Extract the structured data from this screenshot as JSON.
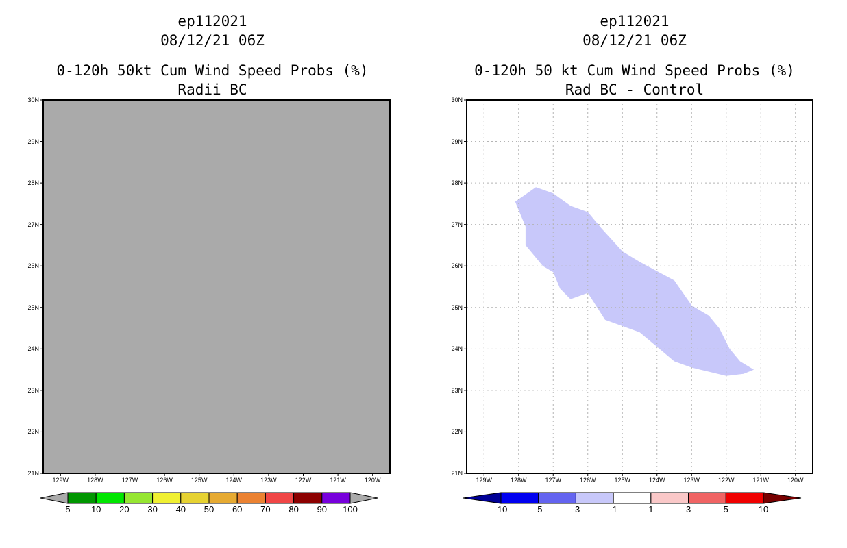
{
  "left": {
    "storm_id": "ep112021",
    "datetime": "08/12/21 06Z",
    "title_line1": "0-120h 50kt Cum Wind Speed Probs (%)",
    "title_line2": "Radii BC",
    "fill_color": "#aaaaaa",
    "colorbar": {
      "colors": [
        "#009600",
        "#00e600",
        "#96e632",
        "#f0f032",
        "#e6d232",
        "#e6aa32",
        "#eb8232",
        "#f04646",
        "#8c0000",
        "#7800dc"
      ],
      "end_color": "#aaaaaa",
      "labels": [
        "5",
        "10",
        "20",
        "30",
        "40",
        "50",
        "60",
        "70",
        "80",
        "90",
        "100"
      ]
    }
  },
  "right": {
    "storm_id": "ep112021",
    "datetime": "08/12/21 06Z",
    "title_line1": "0-120h 50 kt Cum Wind Speed Probs (%)",
    "title_line2": "Rad BC - Control",
    "shade_color": "#c8c8fa",
    "colorbar": {
      "colors": [
        "#0000f0",
        "#6464f0",
        "#c8c8fa",
        "#ffffff",
        "#fac8c8",
        "#f06464",
        "#f00000"
      ],
      "low_color": "#000096",
      "high_color": "#780000",
      "labels": [
        "-10",
        "-5",
        "-3",
        "-1",
        "1",
        "3",
        "5",
        "10"
      ]
    }
  },
  "chart_data": [
    {
      "type": "heatmap",
      "title": "ep112021 08/12/21 06Z 0-120h 50kt Cum Wind Speed Probs (%) Radii BC",
      "xlabels": [
        "129W",
        "128W",
        "127W",
        "126W",
        "125W",
        "124W",
        "123W",
        "122W",
        "121W",
        "120W"
      ],
      "ylabels": [
        "21N",
        "22N",
        "23N",
        "24N",
        "25N",
        "26N",
        "27N",
        "28N",
        "29N",
        "30N"
      ],
      "xlim": [
        -129.5,
        -119.5
      ],
      "ylim": [
        21,
        30
      ],
      "field": "uniform (no probabilities above 5%)"
    },
    {
      "type": "heatmap",
      "title": "ep112021 08/12/21 06Z 0-120h 50 kt Cum Wind Speed Probs (%) Rad BC - Control",
      "xlabels": [
        "129W",
        "128W",
        "127W",
        "126W",
        "125W",
        "124W",
        "123W",
        "122W",
        "121W",
        "120W"
      ],
      "ylabels": [
        "21N",
        "22N",
        "23N",
        "24N",
        "25N",
        "26N",
        "27N",
        "28N",
        "29N",
        "30N"
      ],
      "xlim": [
        -129.5,
        -119.5
      ],
      "ylim": [
        21,
        30
      ],
      "grid": true,
      "shaded_region": {
        "category": "-3 to -1",
        "outline_lon_lat": [
          [
            -128.1,
            27.55
          ],
          [
            -127.5,
            27.9
          ],
          [
            -127.0,
            27.75
          ],
          [
            -126.5,
            27.45
          ],
          [
            -126.0,
            27.3
          ],
          [
            -125.6,
            26.9
          ],
          [
            -125.0,
            26.35
          ],
          [
            -124.5,
            26.1
          ],
          [
            -123.5,
            25.65
          ],
          [
            -123.0,
            25.05
          ],
          [
            -122.5,
            24.8
          ],
          [
            -122.2,
            24.5
          ],
          [
            -121.9,
            24.0
          ],
          [
            -121.6,
            23.7
          ],
          [
            -121.2,
            23.5
          ],
          [
            -121.5,
            23.4
          ],
          [
            -122.0,
            23.35
          ],
          [
            -122.5,
            23.45
          ],
          [
            -123.0,
            23.55
          ],
          [
            -123.5,
            23.7
          ],
          [
            -124.0,
            24.05
          ],
          [
            -124.5,
            24.4
          ],
          [
            -125.0,
            24.55
          ],
          [
            -125.5,
            24.7
          ],
          [
            -126.0,
            25.35
          ],
          [
            -126.5,
            25.2
          ],
          [
            -126.8,
            25.45
          ],
          [
            -127.0,
            25.85
          ],
          [
            -127.3,
            26.0
          ],
          [
            -127.8,
            26.5
          ],
          [
            -127.8,
            26.95
          ]
        ]
      }
    }
  ]
}
